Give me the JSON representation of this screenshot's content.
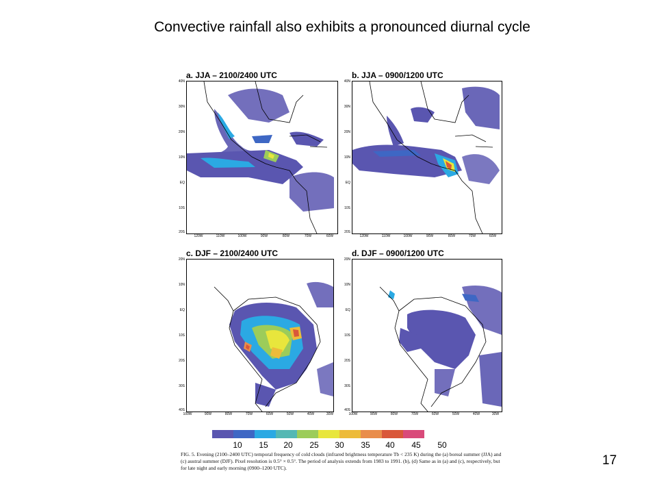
{
  "slide": {
    "title": "Convective rainfall also exhibits a pronounced diurnal cycle",
    "page_number": "17"
  },
  "figure": {
    "panels": [
      {
        "id": "a",
        "title": "a. JJA – 2100/2400 UTC",
        "lat_labels": [
          "40N",
          "30N",
          "20N",
          "10N",
          "EQ",
          "10S",
          "20S"
        ],
        "lon_labels": [
          "120W",
          "110W",
          "100W",
          "90W",
          "80W",
          "70W",
          "60W"
        ]
      },
      {
        "id": "b",
        "title": "b. JJA – 0900/1200 UTC",
        "lat_labels": [
          "40N",
          "30N",
          "20N",
          "10N",
          "EQ",
          "10S",
          "20S"
        ],
        "lon_labels": [
          "120W",
          "110W",
          "100W",
          "90W",
          "80W",
          "70W",
          "60W"
        ]
      },
      {
        "id": "c",
        "title": "c. DJF – 2100/2400 UTC",
        "lat_labels": [
          "20N",
          "10N",
          "EQ",
          "10S",
          "20S",
          "30S",
          "40S"
        ],
        "lon_labels": [
          "100W",
          "90W",
          "80W",
          "70W",
          "60W",
          "50W",
          "40W",
          "30W"
        ]
      },
      {
        "id": "d",
        "title": "d. DJF – 0900/1200 UTC",
        "lat_labels": [
          "20N",
          "10N",
          "EQ",
          "10S",
          "20S",
          "30S",
          "40S"
        ],
        "lon_labels": [
          "100W",
          "90W",
          "80W",
          "70W",
          "60W",
          "50W",
          "40W",
          "30W"
        ]
      }
    ],
    "colorbar": {
      "labels": [
        "10",
        "15",
        "20",
        "25",
        "30",
        "35",
        "40",
        "45",
        "50"
      ],
      "colors": [
        "#5a56b0",
        "#3e67c4",
        "#2ba9e3",
        "#54b8b4",
        "#9ccc5a",
        "#e8e63c",
        "#edbb3a",
        "#e98d4b",
        "#d9573a",
        "#d94a7a"
      ]
    },
    "caption": "FIG. 5. Evening (2100–2400 UTC) temporal frequency of cold clouds (infrared brightness temperature Tb < 235 K) during the (a) boreal summer (JJA) and (c) austral summer (DJF). Pixel resolution is 0.5° × 0.5°. The period of analysis extends from 1983 to 1991. (b), (d) Same as in (a) and (c), respectively, but for late night and early morning (0900–1200 UTC)."
  }
}
